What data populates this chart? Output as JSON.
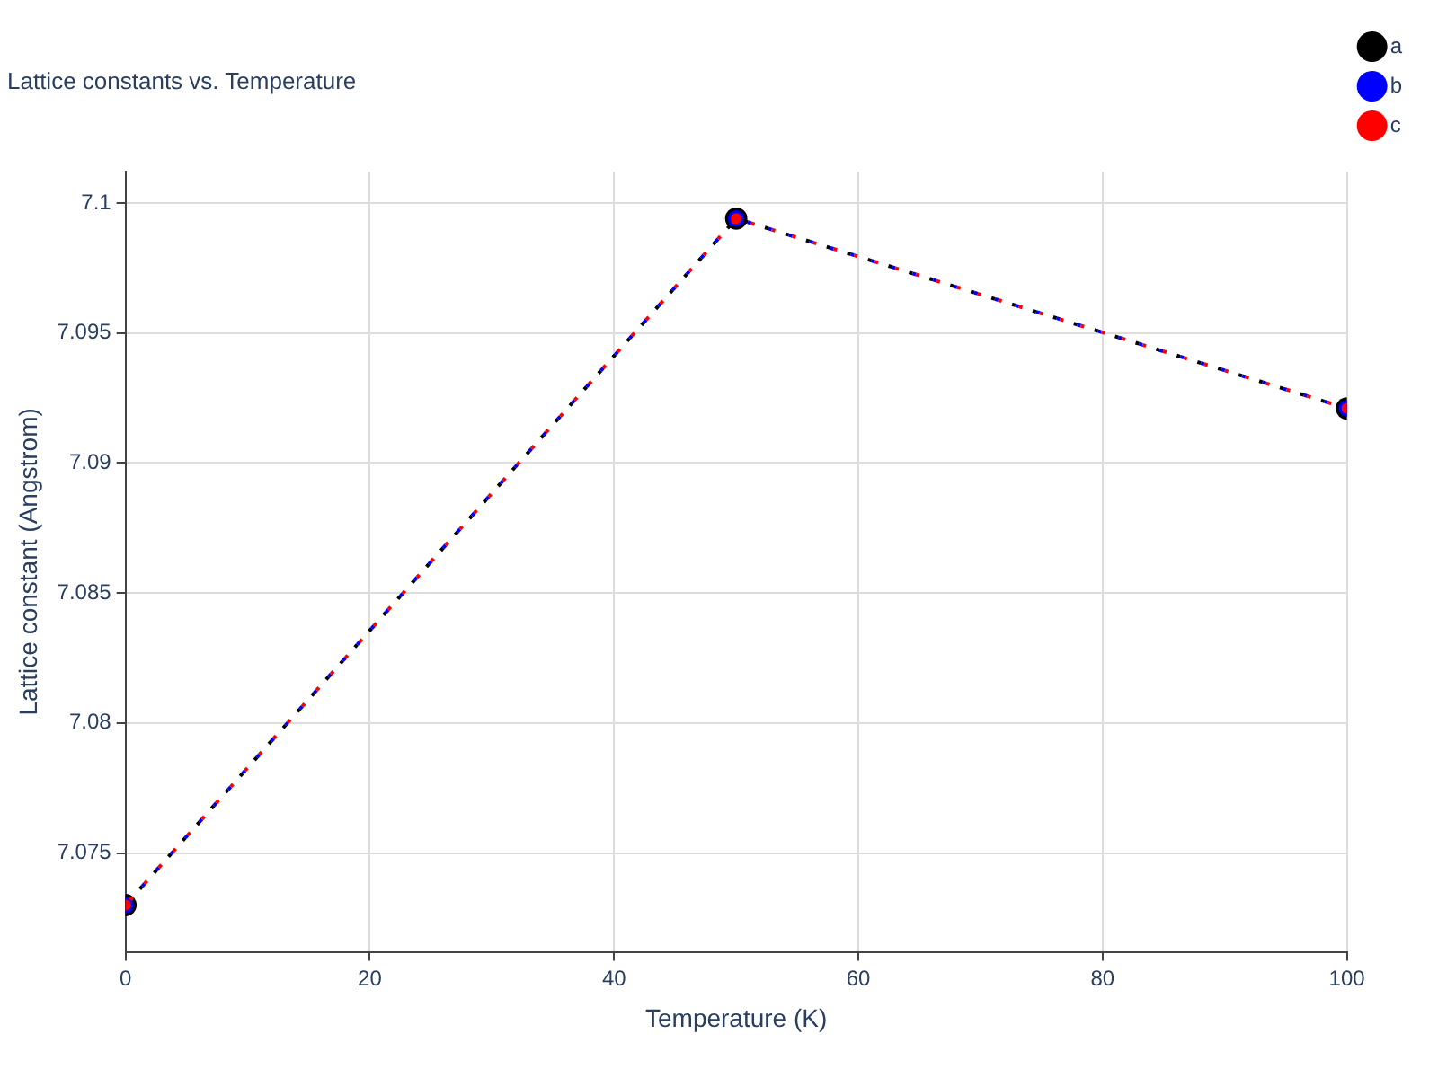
{
  "chart_data": {
    "type": "line",
    "title": "Lattice constants vs. Temperature",
    "xlabel": "Temperature (K)",
    "ylabel": "Lattice constant (Angstrom)",
    "x": [
      0,
      50,
      100
    ],
    "series": [
      {
        "name": "a",
        "color": "#000000",
        "values": [
          7.073,
          7.0994,
          7.0921
        ]
      },
      {
        "name": "b",
        "color": "#0000ff",
        "values": [
          7.073,
          7.0994,
          7.0921
        ]
      },
      {
        "name": "c",
        "color": "#ff0000",
        "values": [
          7.073,
          7.0994,
          7.0921
        ]
      }
    ],
    "xlim": [
      0,
      100
    ],
    "xticks": [
      0,
      20,
      40,
      60,
      80,
      100
    ],
    "ylim": [
      7.0712,
      7.1012
    ],
    "yticks": [
      7.075,
      7.08,
      7.085,
      7.09,
      7.095,
      7.1
    ],
    "grid": true,
    "legend": "top right",
    "marker": "circle",
    "line_style": "dotted"
  }
}
